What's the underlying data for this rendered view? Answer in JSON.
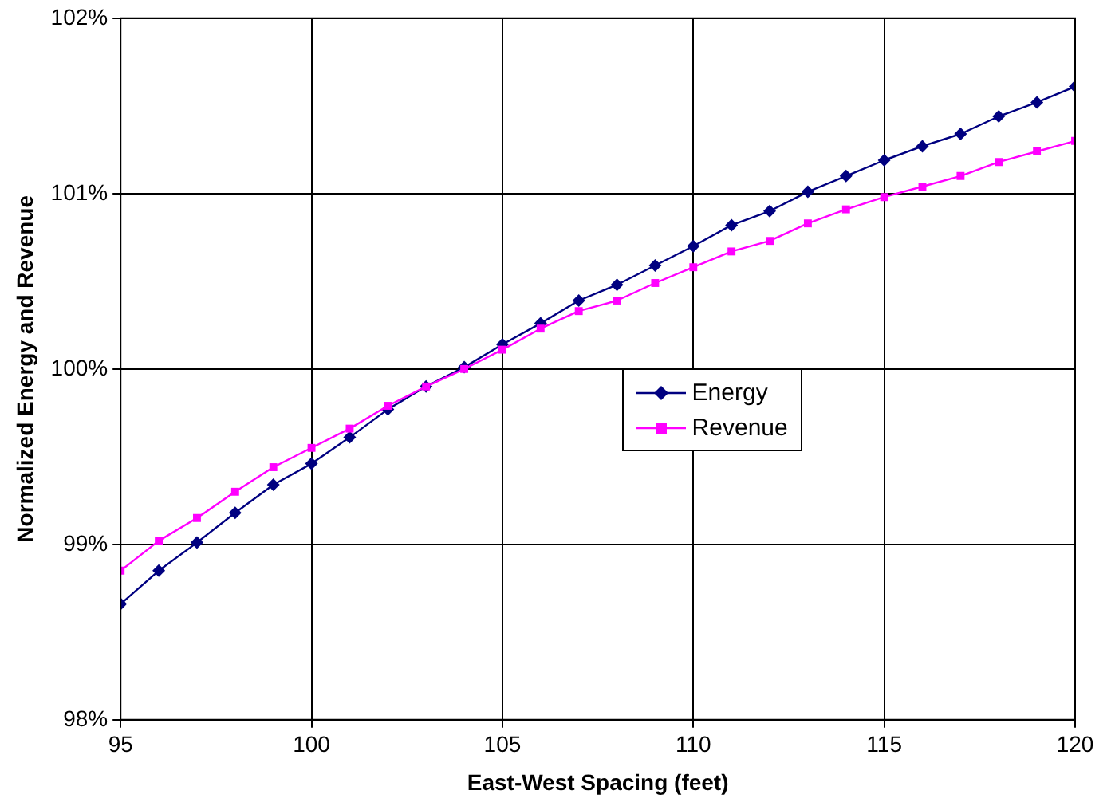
{
  "chart_data": {
    "type": "line",
    "xlabel": "East-West Spacing (feet)",
    "ylabel": "Normalized Energy and Revenue",
    "x": [
      95,
      96,
      97,
      98,
      99,
      100,
      101,
      102,
      103,
      104,
      105,
      106,
      107,
      108,
      109,
      110,
      111,
      112,
      113,
      114,
      115,
      116,
      117,
      118,
      119,
      120
    ],
    "series": [
      {
        "name": "Energy",
        "color": "#000080",
        "marker": "diamond",
        "values": [
          98.66,
          98.85,
          99.01,
          99.18,
          99.34,
          99.46,
          99.61,
          99.77,
          99.9,
          100.01,
          100.14,
          100.26,
          100.39,
          100.48,
          100.59,
          100.7,
          100.82,
          100.9,
          101.01,
          101.1,
          101.19,
          101.27,
          101.34,
          101.44,
          101.52,
          101.61
        ]
      },
      {
        "name": "Revenue",
        "color": "#ff00ff",
        "marker": "square",
        "values": [
          98.85,
          99.02,
          99.15,
          99.3,
          99.44,
          99.55,
          99.66,
          99.79,
          99.9,
          100.0,
          100.11,
          100.23,
          100.33,
          100.39,
          100.49,
          100.58,
          100.67,
          100.73,
          100.83,
          100.91,
          100.98,
          101.04,
          101.1,
          101.18,
          101.24,
          101.3
        ]
      }
    ],
    "xlim": [
      95,
      120
    ],
    "xticks": [
      95,
      100,
      105,
      110,
      115,
      120
    ],
    "ylim": [
      98,
      102
    ],
    "yticks": [
      {
        "value": 98,
        "label": "98%"
      },
      {
        "value": 99,
        "label": "99%"
      },
      {
        "value": 100,
        "label": "100%"
      },
      {
        "value": 101,
        "label": "101%"
      },
      {
        "value": 102,
        "label": "102%"
      }
    ],
    "grid": true,
    "legend": "center",
    "line_style": "solid"
  }
}
